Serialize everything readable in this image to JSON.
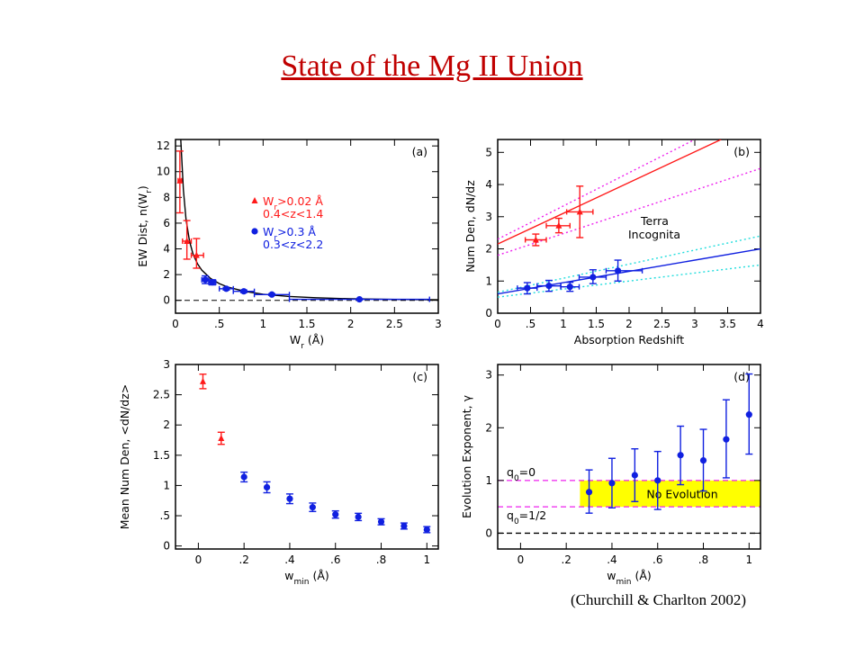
{
  "slide_title": "State of the Mg II Union",
  "citation": "(Churchill & Charlton 2002)",
  "colors": {
    "red": "#ff1a1a",
    "blue": "#1020e0",
    "magenta": "#ee22ee",
    "cyan": "#22dddd",
    "yellow": "#ffff00",
    "black": "#000000"
  },
  "chart_data": [
    {
      "panel": "(a)",
      "type": "scatter",
      "xlabel": "W_r (Å)",
      "ylabel": "EW Dist, n(W_r)",
      "xlim": [
        0,
        3
      ],
      "ylim": [
        -1,
        12.5
      ],
      "xticks": [
        {
          "v": 0,
          "t": "0"
        },
        {
          "v": 0.5,
          "t": ".5"
        },
        {
          "v": 1,
          "t": "1"
        },
        {
          "v": 1.5,
          "t": "1.5"
        },
        {
          "v": 2,
          "t": "2"
        },
        {
          "v": 2.5,
          "t": "2.5"
        },
        {
          "v": 3,
          "t": "3"
        }
      ],
      "yticks": [
        {
          "v": 0,
          "t": "0"
        },
        {
          "v": 2,
          "t": "2"
        },
        {
          "v": 4,
          "t": "4"
        },
        {
          "v": 6,
          "t": "6"
        },
        {
          "v": 8,
          "t": "8"
        },
        {
          "v": 10,
          "t": "10"
        },
        {
          "v": 12,
          "t": "12"
        }
      ],
      "legend": [
        {
          "line1": "W_r>0.02 Å",
          "line2": "0.4<z<1.4",
          "color": "red",
          "marker": "triangle"
        },
        {
          "line1": "W_r>0.3 Å",
          "line2": "0.3<z<2.2",
          "color": "blue",
          "marker": "circle"
        }
      ],
      "series": [
        {
          "color": "red",
          "marker": "triangle",
          "points": [
            {
              "x": 0.05,
              "y": 9.3,
              "ylo": 6.8,
              "yhi": 11.6,
              "xlo": 0.03,
              "xhi": 0.07
            },
            {
              "x": 0.13,
              "y": 4.6,
              "ylo": 3.2,
              "yhi": 6.2,
              "xlo": 0.08,
              "xhi": 0.18
            },
            {
              "x": 0.24,
              "y": 3.5,
              "ylo": 2.5,
              "yhi": 4.8,
              "xlo": 0.18,
              "xhi": 0.32
            }
          ]
        },
        {
          "color": "blue",
          "marker": "circle",
          "points": [
            {
              "x": 0.34,
              "y": 1.6,
              "ylo": 1.3,
              "yhi": 1.9,
              "xlo": 0.3,
              "xhi": 0.38
            },
            {
              "x": 0.42,
              "y": 1.4,
              "ylo": 1.2,
              "yhi": 1.6,
              "xlo": 0.38,
              "xhi": 0.46
            },
            {
              "x": 0.58,
              "y": 0.9,
              "ylo": 0.8,
              "yhi": 1.0,
              "xlo": 0.5,
              "xhi": 0.66
            },
            {
              "x": 0.78,
              "y": 0.7,
              "ylo": 0.6,
              "yhi": 0.8,
              "xlo": 0.66,
              "xhi": 0.9
            },
            {
              "x": 1.1,
              "y": 0.45,
              "ylo": 0.38,
              "yhi": 0.52,
              "xlo": 0.9,
              "xhi": 1.3
            },
            {
              "x": 2.1,
              "y": 0.08,
              "ylo": 0.04,
              "yhi": 0.12,
              "xlo": 1.3,
              "xhi": 2.9
            }
          ]
        }
      ],
      "fit_curve": {
        "color": "black",
        "x": [
          0.06,
          0.09,
          0.12,
          0.16,
          0.2,
          0.25,
          0.3,
          0.4,
          0.5,
          0.6,
          0.8,
          1.0,
          1.3,
          1.6,
          2.0,
          2.5,
          3.0
        ],
        "y": [
          12.5,
          8.6,
          6.3,
          4.6,
          3.6,
          2.85,
          2.35,
          1.7,
          1.3,
          1.02,
          0.68,
          0.47,
          0.3,
          0.2,
          0.12,
          0.07,
          0.04
        ]
      },
      "zero_line": 0
    },
    {
      "panel": "(b)",
      "type": "line",
      "xlabel": "Absorption Redshift",
      "ylabel": "Num Den, dN/dz",
      "xlim": [
        0,
        4
      ],
      "ylim": [
        0,
        5.4
      ],
      "xticks": [
        {
          "v": 0,
          "t": "0"
        },
        {
          "v": 0.5,
          "t": ".5"
        },
        {
          "v": 1,
          "t": "1"
        },
        {
          "v": 1.5,
          "t": "1.5"
        },
        {
          "v": 2,
          "t": "2"
        },
        {
          "v": 2.5,
          "t": "2.5"
        },
        {
          "v": 3,
          "t": "3"
        },
        {
          "v": 3.5,
          "t": "3.5"
        },
        {
          "v": 4,
          "t": "4"
        }
      ],
      "yticks": [
        {
          "v": 0,
          "t": "0"
        },
        {
          "v": 1,
          "t": "1"
        },
        {
          "v": 2,
          "t": "2"
        },
        {
          "v": 3,
          "t": "3"
        },
        {
          "v": 4,
          "t": "4"
        },
        {
          "v": 5,
          "t": "5"
        }
      ],
      "annotation": [
        "Terra",
        "Incognita"
      ],
      "lines": [
        {
          "color": "red",
          "dash": false,
          "x": [
            0,
            3.4
          ],
          "y": [
            2.15,
            5.4
          ]
        },
        {
          "color": "magenta",
          "dash": true,
          "x": [
            0,
            3.0
          ],
          "y": [
            2.3,
            5.4
          ]
        },
        {
          "color": "magenta",
          "dash": true,
          "x": [
            0,
            4
          ],
          "y": [
            1.8,
            4.5
          ]
        },
        {
          "color": "blue",
          "dash": false,
          "x": [
            0,
            4
          ],
          "y": [
            0.6,
            2.0
          ]
        },
        {
          "color": "cyan",
          "dash": true,
          "x": [
            0,
            4
          ],
          "y": [
            0.65,
            2.4
          ]
        },
        {
          "color": "cyan",
          "dash": true,
          "x": [
            0,
            4
          ],
          "y": [
            0.5,
            1.5
          ]
        }
      ],
      "series": [
        {
          "color": "red",
          "marker": "triangle",
          "points": [
            {
              "x": 0.58,
              "y": 2.28,
              "ylo": 2.1,
              "yhi": 2.46,
              "xlo": 0.42,
              "xhi": 0.74
            },
            {
              "x": 0.93,
              "y": 2.72,
              "ylo": 2.5,
              "yhi": 2.95,
              "xlo": 0.74,
              "xhi": 1.1
            },
            {
              "x": 1.25,
              "y": 3.15,
              "ylo": 2.35,
              "yhi": 3.95,
              "xlo": 1.05,
              "xhi": 1.45
            }
          ]
        },
        {
          "color": "blue",
          "marker": "circle",
          "points": [
            {
              "x": 0.45,
              "y": 0.78,
              "ylo": 0.6,
              "yhi": 0.95,
              "xlo": 0.3,
              "xhi": 0.6
            },
            {
              "x": 0.78,
              "y": 0.85,
              "ylo": 0.68,
              "yhi": 1.02,
              "xlo": 0.6,
              "xhi": 0.96
            },
            {
              "x": 1.1,
              "y": 0.82,
              "ylo": 0.68,
              "yhi": 0.96,
              "xlo": 0.96,
              "xhi": 1.24
            },
            {
              "x": 1.45,
              "y": 1.12,
              "ylo": 0.92,
              "yhi": 1.35,
              "xlo": 1.24,
              "xhi": 1.65
            },
            {
              "x": 1.83,
              "y": 1.32,
              "ylo": 1.0,
              "yhi": 1.65,
              "xlo": 1.65,
              "xhi": 2.2
            }
          ]
        }
      ]
    },
    {
      "panel": "(c)",
      "type": "scatter",
      "xlabel": "W_min (Å)",
      "ylabel": "Mean Num Den, <dN/dz>",
      "xlim": [
        -0.1,
        1.05
      ],
      "ylim": [
        -0.05,
        3
      ],
      "xticks": [
        {
          "v": 0,
          "t": "0"
        },
        {
          "v": 0.2,
          "t": ".2"
        },
        {
          "v": 0.4,
          "t": ".4"
        },
        {
          "v": 0.6,
          "t": ".6"
        },
        {
          "v": 0.8,
          "t": ".8"
        },
        {
          "v": 1,
          "t": "1"
        }
      ],
      "yticks": [
        {
          "v": 0,
          "t": "0"
        },
        {
          "v": 0.5,
          "t": ".5"
        },
        {
          "v": 1,
          "t": "1"
        },
        {
          "v": 1.5,
          "t": "1.5"
        },
        {
          "v": 2,
          "t": "2"
        },
        {
          "v": 2.5,
          "t": "2.5"
        },
        {
          "v": 3,
          "t": "3"
        }
      ],
      "series": [
        {
          "color": "red",
          "marker": "triangle",
          "points": [
            {
              "x": 0.02,
              "y": 2.72,
              "ylo": 2.6,
              "yhi": 2.84
            },
            {
              "x": 0.1,
              "y": 1.78,
              "ylo": 1.68,
              "yhi": 1.88
            }
          ]
        },
        {
          "color": "blue",
          "marker": "circle",
          "points": [
            {
              "x": 0.2,
              "y": 1.14,
              "ylo": 1.06,
              "yhi": 1.22
            },
            {
              "x": 0.3,
              "y": 0.97,
              "ylo": 0.88,
              "yhi": 1.06
            },
            {
              "x": 0.4,
              "y": 0.78,
              "ylo": 0.7,
              "yhi": 0.86
            },
            {
              "x": 0.5,
              "y": 0.64,
              "ylo": 0.57,
              "yhi": 0.71
            },
            {
              "x": 0.6,
              "y": 0.52,
              "ylo": 0.46,
              "yhi": 0.58
            },
            {
              "x": 0.7,
              "y": 0.48,
              "ylo": 0.42,
              "yhi": 0.54
            },
            {
              "x": 0.8,
              "y": 0.4,
              "ylo": 0.35,
              "yhi": 0.45
            },
            {
              "x": 0.9,
              "y": 0.33,
              "ylo": 0.28,
              "yhi": 0.38
            },
            {
              "x": 1.0,
              "y": 0.27,
              "ylo": 0.22,
              "yhi": 0.32
            }
          ]
        }
      ]
    },
    {
      "panel": "(d)",
      "type": "scatter",
      "xlabel": "W_min (Å)",
      "ylabel": "Evolution Exponent, γ",
      "xlim": [
        -0.1,
        1.05
      ],
      "ylim": [
        -0.3,
        3.2
      ],
      "xticks": [
        {
          "v": 0,
          "t": "0"
        },
        {
          "v": 0.2,
          "t": ".2"
        },
        {
          "v": 0.4,
          "t": ".4"
        },
        {
          "v": 0.6,
          "t": ".6"
        },
        {
          "v": 0.8,
          "t": ".8"
        },
        {
          "v": 1,
          "t": "1"
        }
      ],
      "yticks": [
        {
          "v": 0,
          "t": "0"
        },
        {
          "v": 1,
          "t": "1"
        },
        {
          "v": 2,
          "t": "2"
        },
        {
          "v": 3,
          "t": "3"
        }
      ],
      "band": {
        "y0": 0.5,
        "y1": 1.0,
        "x0": 0.26,
        "x1": 1.05,
        "label": "No Evolution",
        "color": "yellow"
      },
      "hlines": [
        {
          "y": 1.0,
          "label": "q0=0",
          "color": "magenta"
        },
        {
          "y": 0.5,
          "label": "q0=1/2",
          "color": "magenta"
        },
        {
          "y": 0.0,
          "label": "",
          "color": "black"
        }
      ],
      "series": [
        {
          "color": "blue",
          "marker": "circle",
          "points": [
            {
              "x": 0.3,
              "y": 0.78,
              "ylo": 0.38,
              "yhi": 1.2
            },
            {
              "x": 0.4,
              "y": 0.95,
              "ylo": 0.48,
              "yhi": 1.42
            },
            {
              "x": 0.5,
              "y": 1.1,
              "ylo": 0.6,
              "yhi": 1.6
            },
            {
              "x": 0.6,
              "y": 1.0,
              "ylo": 0.45,
              "yhi": 1.55
            },
            {
              "x": 0.7,
              "y": 1.48,
              "ylo": 0.92,
              "yhi": 2.03
            },
            {
              "x": 0.8,
              "y": 1.38,
              "ylo": 0.8,
              "yhi": 1.97
            },
            {
              "x": 0.9,
              "y": 1.78,
              "ylo": 1.05,
              "yhi": 2.53
            },
            {
              "x": 1.0,
              "y": 2.25,
              "ylo": 1.5,
              "yhi": 3.02
            }
          ]
        }
      ]
    }
  ]
}
